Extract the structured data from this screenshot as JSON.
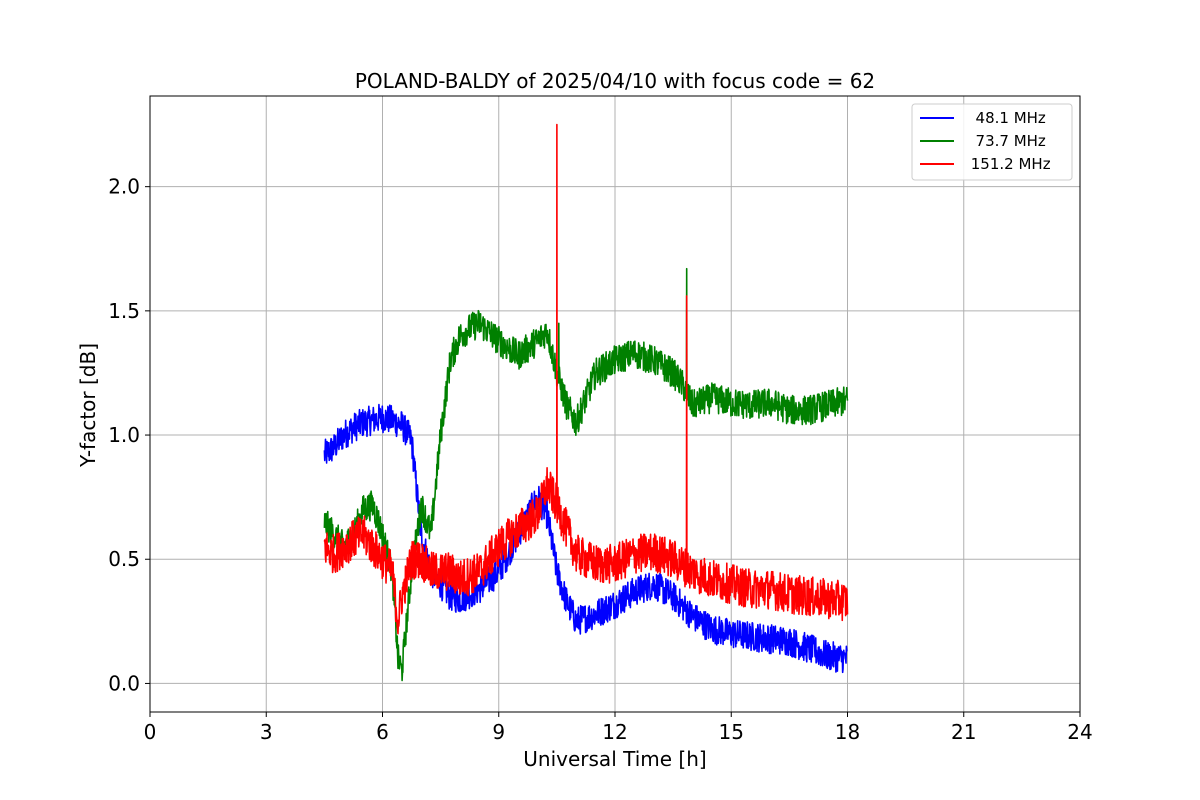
{
  "chart_data": {
    "type": "line",
    "title": "POLAND-BALDY of 2025/04/10 with focus code = 62",
    "xlabel": "Universal Time [h]",
    "ylabel": "Y-factor [dB]",
    "xlim": [
      0,
      24
    ],
    "ylim": [
      -0.115,
      2.365
    ],
    "x_ticks": [
      0,
      3,
      6,
      9,
      12,
      15,
      18,
      21,
      24
    ],
    "x_tick_labels": [
      "0",
      "3",
      "6",
      "9",
      "12",
      "15",
      "18",
      "21",
      "24"
    ],
    "y_ticks": [
      0.0,
      0.5,
      1.0,
      1.5,
      2.0
    ],
    "y_tick_labels": [
      "0.0",
      "0.5",
      "1.0",
      "1.5",
      "2.0"
    ],
    "grid": true,
    "legend_position": "top-right",
    "series": [
      {
        "name": "  48.1 MHz",
        "color": "#0000ff",
        "x": [
          4.5,
          4.75,
          5.0,
          5.25,
          5.5,
          5.75,
          6.0,
          6.25,
          6.5,
          6.75,
          7.0,
          7.25,
          7.5,
          7.75,
          8.0,
          8.5,
          9.0,
          9.5,
          10.0,
          10.25,
          10.5,
          10.75,
          11.0,
          11.5,
          12.0,
          12.5,
          13.0,
          13.5,
          14.0,
          14.5,
          15.0,
          15.5,
          16.0,
          16.5,
          17.0,
          17.5,
          18.0
        ],
        "values": [
          0.92,
          0.95,
          1.0,
          1.03,
          1.05,
          1.06,
          1.07,
          1.06,
          1.04,
          0.98,
          0.6,
          0.45,
          0.4,
          0.35,
          0.34,
          0.38,
          0.45,
          0.6,
          0.75,
          0.68,
          0.45,
          0.33,
          0.25,
          0.28,
          0.32,
          0.37,
          0.4,
          0.35,
          0.27,
          0.22,
          0.2,
          0.19,
          0.18,
          0.17,
          0.14,
          0.11,
          0.1
        ],
        "noise": 0.06
      },
      {
        "name": "  73.7 MHz",
        "color": "#008000",
        "x": [
          4.5,
          4.75,
          5.0,
          5.25,
          5.5,
          5.75,
          6.0,
          6.25,
          6.4,
          6.5,
          6.75,
          7.0,
          7.25,
          7.5,
          7.75,
          8.0,
          8.25,
          8.5,
          9.0,
          9.5,
          10.0,
          10.25,
          10.5,
          10.75,
          11.0,
          11.25,
          11.5,
          12.0,
          12.5,
          13.0,
          13.5,
          13.75,
          14.0,
          14.5,
          15.0,
          15.5,
          16.0,
          16.5,
          17.0,
          17.5,
          18.0
        ],
        "values": [
          0.65,
          0.6,
          0.55,
          0.6,
          0.7,
          0.72,
          0.6,
          0.45,
          0.1,
          0.05,
          0.45,
          0.72,
          0.6,
          1.0,
          1.3,
          1.4,
          1.43,
          1.45,
          1.38,
          1.32,
          1.38,
          1.42,
          1.25,
          1.12,
          1.05,
          1.15,
          1.25,
          1.3,
          1.33,
          1.3,
          1.25,
          1.2,
          1.12,
          1.15,
          1.13,
          1.12,
          1.13,
          1.1,
          1.1,
          1.12,
          1.14
        ],
        "noise": 0.06
      },
      {
        "name": " 151.2 MHz",
        "color": "#ff0000",
        "x": [
          4.5,
          4.75,
          5.0,
          5.25,
          5.5,
          5.75,
          6.0,
          6.25,
          6.4,
          6.5,
          6.75,
          7.0,
          7.25,
          7.5,
          7.75,
          8.0,
          8.5,
          9.0,
          9.5,
          10.0,
          10.25,
          10.5,
          10.75,
          11.0,
          11.5,
          12.0,
          12.5,
          13.0,
          13.5,
          14.0,
          14.5,
          15.0,
          15.5,
          16.0,
          16.5,
          17.0,
          17.5,
          18.0
        ],
        "values": [
          0.55,
          0.52,
          0.55,
          0.58,
          0.6,
          0.55,
          0.5,
          0.45,
          0.25,
          0.35,
          0.5,
          0.5,
          0.45,
          0.45,
          0.45,
          0.42,
          0.45,
          0.55,
          0.62,
          0.68,
          0.8,
          0.72,
          0.62,
          0.52,
          0.48,
          0.48,
          0.52,
          0.53,
          0.5,
          0.45,
          0.42,
          0.4,
          0.38,
          0.38,
          0.36,
          0.35,
          0.34,
          0.33
        ],
        "noise": 0.08
      }
    ],
    "spikes": [
      {
        "series": " 151.2 MHz",
        "x": 10.5,
        "value": 2.25
      },
      {
        "series": " 151.2 MHz",
        "x": 13.85,
        "value": 1.56
      },
      {
        "series": "  73.7 MHz",
        "x": 13.85,
        "value": 1.67
      },
      {
        "series": "  73.7 MHz",
        "x": 10.55,
        "value": 1.45
      }
    ]
  }
}
